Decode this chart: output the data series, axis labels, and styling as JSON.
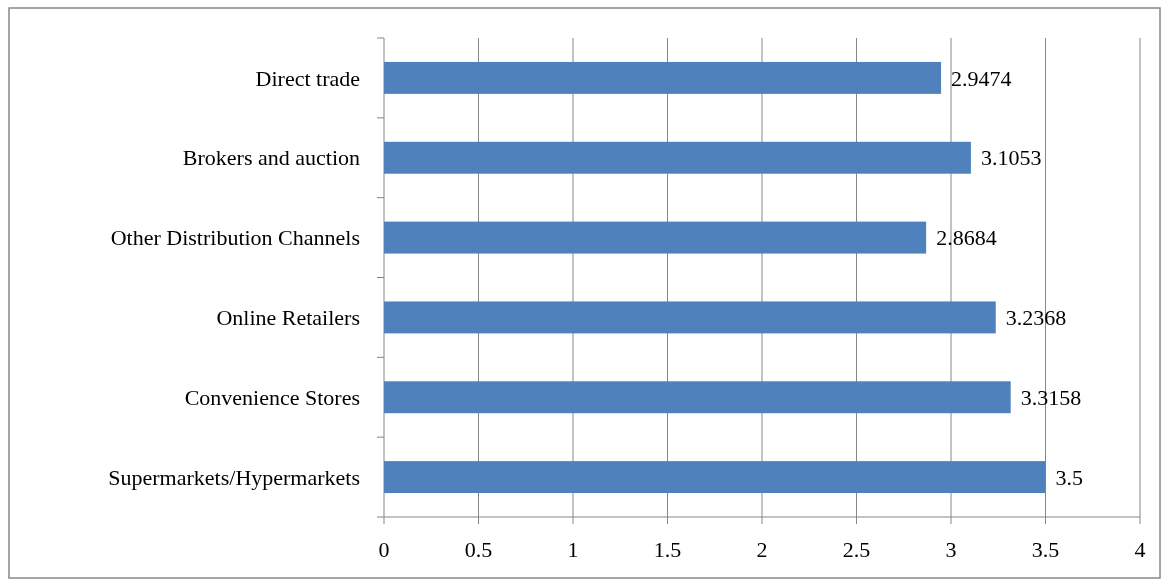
{
  "chart_data": {
    "type": "bar",
    "orientation": "horizontal",
    "categories": [
      "Direct trade",
      "Brokers and auction",
      "Other Distribution Channels",
      "Online Retailers",
      "Convenience Stores",
      "Supermarkets/Hypermarkets"
    ],
    "values": [
      2.9474,
      3.1053,
      2.8684,
      3.2368,
      3.3158,
      3.5
    ],
    "color": "#4f81bd",
    "xlim": [
      0,
      4
    ],
    "xticks": [
      0,
      0.5,
      1,
      1.5,
      2,
      2.5,
      3,
      3.5,
      4
    ],
    "grid": "x",
    "data_labels": true
  }
}
